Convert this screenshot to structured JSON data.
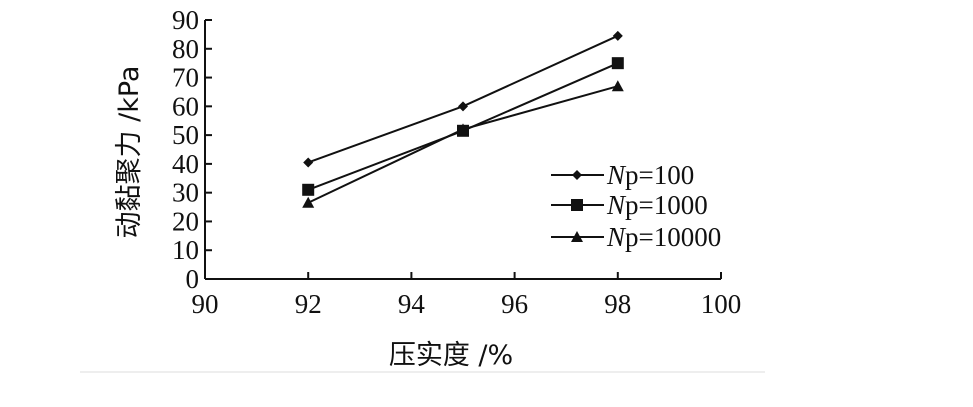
{
  "chart_data": {
    "type": "line",
    "xlabel": "压实度 /%",
    "ylabel": "动黏聚力 /kPa",
    "xlim": [
      90,
      100
    ],
    "ylim": [
      0,
      90
    ],
    "x_ticks": [
      "90",
      "92",
      "94",
      "96",
      "98",
      "100"
    ],
    "y_ticks": [
      "0",
      "10",
      "20",
      "30",
      "40",
      "50",
      "60",
      "70",
      "80",
      "90"
    ],
    "grid": false,
    "legend_position": "right",
    "x": [
      92,
      95,
      98
    ],
    "series": [
      {
        "name": "Np=100",
        "name_prefix": "N",
        "name_suffix": "p=100",
        "marker": "diamond",
        "values": [
          40.5,
          60,
          84.5
        ]
      },
      {
        "name": "Np=1000",
        "name_prefix": "N",
        "name_suffix": "p=1000",
        "marker": "square",
        "values": [
          31,
          51.5,
          75
        ]
      },
      {
        "name": "Np=10000",
        "name_prefix": "N",
        "name_suffix": "p=10000",
        "marker": "triangle",
        "values": [
          26.5,
          52,
          67
        ]
      }
    ]
  }
}
